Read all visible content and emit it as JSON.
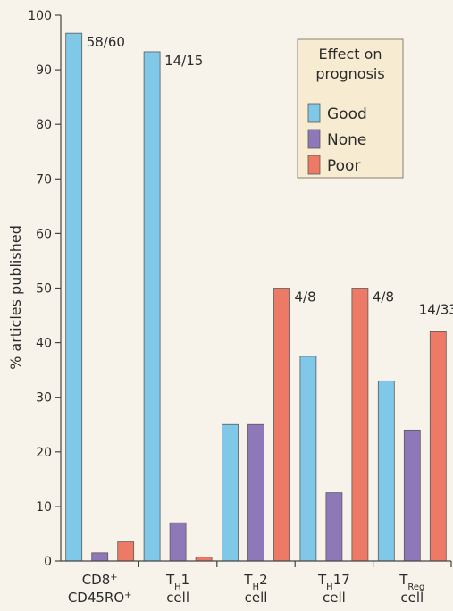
{
  "chart_data": {
    "type": "bar",
    "ylabel": "% articles published",
    "ylim": [
      0,
      100
    ],
    "yticks": [
      0,
      10,
      20,
      30,
      40,
      50,
      60,
      70,
      80,
      90,
      100
    ],
    "grid": false,
    "legend": {
      "title_line1": "Effect on",
      "title_line2": "prognosis",
      "placement": "top-right"
    },
    "categories": [
      {
        "main": "CD8",
        "sup": "+",
        "line2": "CD45RO",
        "line2_sup": "+"
      },
      {
        "main": "T",
        "sub": "H",
        "rest": "1",
        "line2": "cell"
      },
      {
        "main": "T",
        "sub": "H",
        "rest": "2",
        "line2": "cell"
      },
      {
        "main": "T",
        "sub": "H",
        "rest": "17",
        "line2": "cell"
      },
      {
        "main": "T",
        "sub": "Reg",
        "rest": "",
        "line2": "cell"
      }
    ],
    "series": [
      {
        "name": "Good",
        "color": "#7fc8e8",
        "values": [
          96.7,
          93.3,
          25,
          37.5,
          33
        ]
      },
      {
        "name": "None",
        "color": "#8e78b8",
        "values": [
          1.5,
          7,
          25,
          12.5,
          24
        ]
      },
      {
        "name": "Poor",
        "color": "#ec7a66",
        "values": [
          3.5,
          0.7,
          50,
          50,
          42
        ]
      }
    ],
    "annotations": [
      {
        "category_index": 0,
        "series_index": 0,
        "text": "58/60"
      },
      {
        "category_index": 1,
        "series_index": 0,
        "text": "14/15"
      },
      {
        "category_index": 2,
        "series_index": 2,
        "text": "4/8"
      },
      {
        "category_index": 3,
        "series_index": 2,
        "text": "4/8"
      },
      {
        "category_index": 4,
        "series_index": 2,
        "text": "14/33"
      }
    ]
  }
}
